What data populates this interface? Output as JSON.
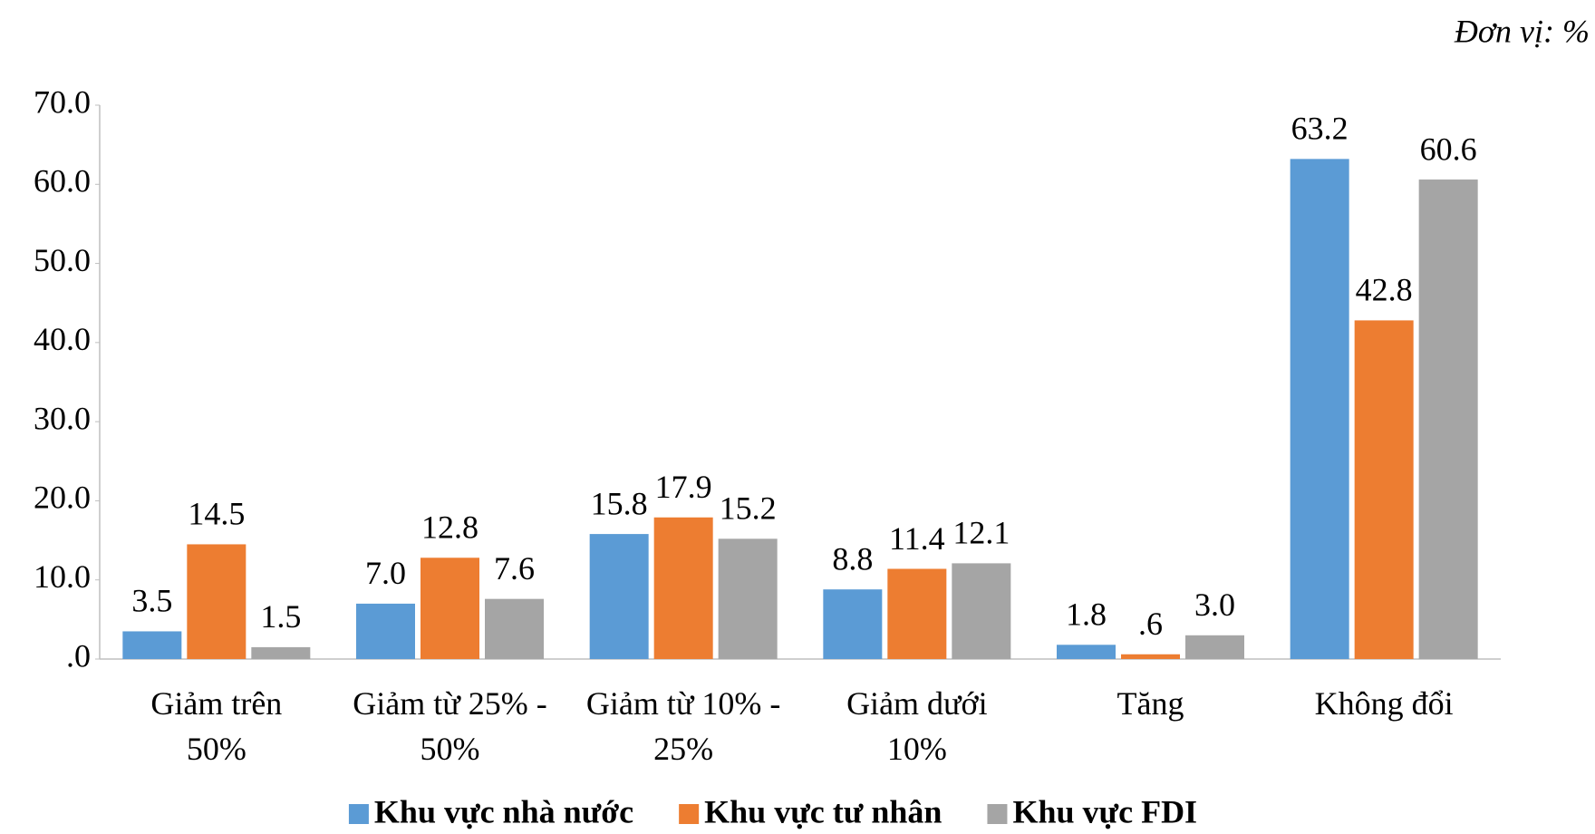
{
  "chart_data": {
    "type": "bar",
    "unit_note": "Đơn vị: %",
    "categories": [
      [
        "Giảm trên",
        "50%"
      ],
      [
        "Giảm từ 25% -",
        "50%"
      ],
      [
        "Giảm từ 10% -",
        "25%"
      ],
      [
        "Giảm dưới",
        "10%"
      ],
      [
        "Tăng"
      ],
      [
        "Không đổi"
      ]
    ],
    "series": [
      {
        "name": "Khu vực nhà nước",
        "color": "#5b9bd5",
        "values": [
          3.5,
          7.0,
          15.8,
          8.8,
          1.8,
          63.2
        ],
        "value_labels": [
          "3.5",
          "7.0",
          "15.8",
          "8.8",
          "1.8",
          "63.2"
        ]
      },
      {
        "name": "Khu vực tư nhân",
        "color": "#ed7d31",
        "values": [
          14.5,
          12.8,
          17.9,
          11.4,
          0.6,
          42.8
        ],
        "value_labels": [
          "14.5",
          "12.8",
          "17.9",
          "11.4",
          ".6",
          "42.8"
        ]
      },
      {
        "name": "Khu vực FDI",
        "color": "#a5a5a5",
        "values": [
          1.5,
          7.6,
          15.2,
          12.1,
          3.0,
          60.6
        ],
        "value_labels": [
          "1.5",
          "7.6",
          "15.2",
          "12.1",
          "3.0",
          "60.6"
        ]
      }
    ],
    "ylim": [
      0,
      70
    ],
    "yticks": [
      {
        "value": 0,
        "label": ".0"
      },
      {
        "value": 10,
        "label": "10.0"
      },
      {
        "value": 20,
        "label": "20.0"
      },
      {
        "value": 30,
        "label": "30.0"
      },
      {
        "value": 40,
        "label": "40.0"
      },
      {
        "value": 50,
        "label": "50.0"
      },
      {
        "value": 60,
        "label": "60.0"
      },
      {
        "value": 70,
        "label": "70.0"
      }
    ],
    "grid": false,
    "legend": "bottom"
  }
}
